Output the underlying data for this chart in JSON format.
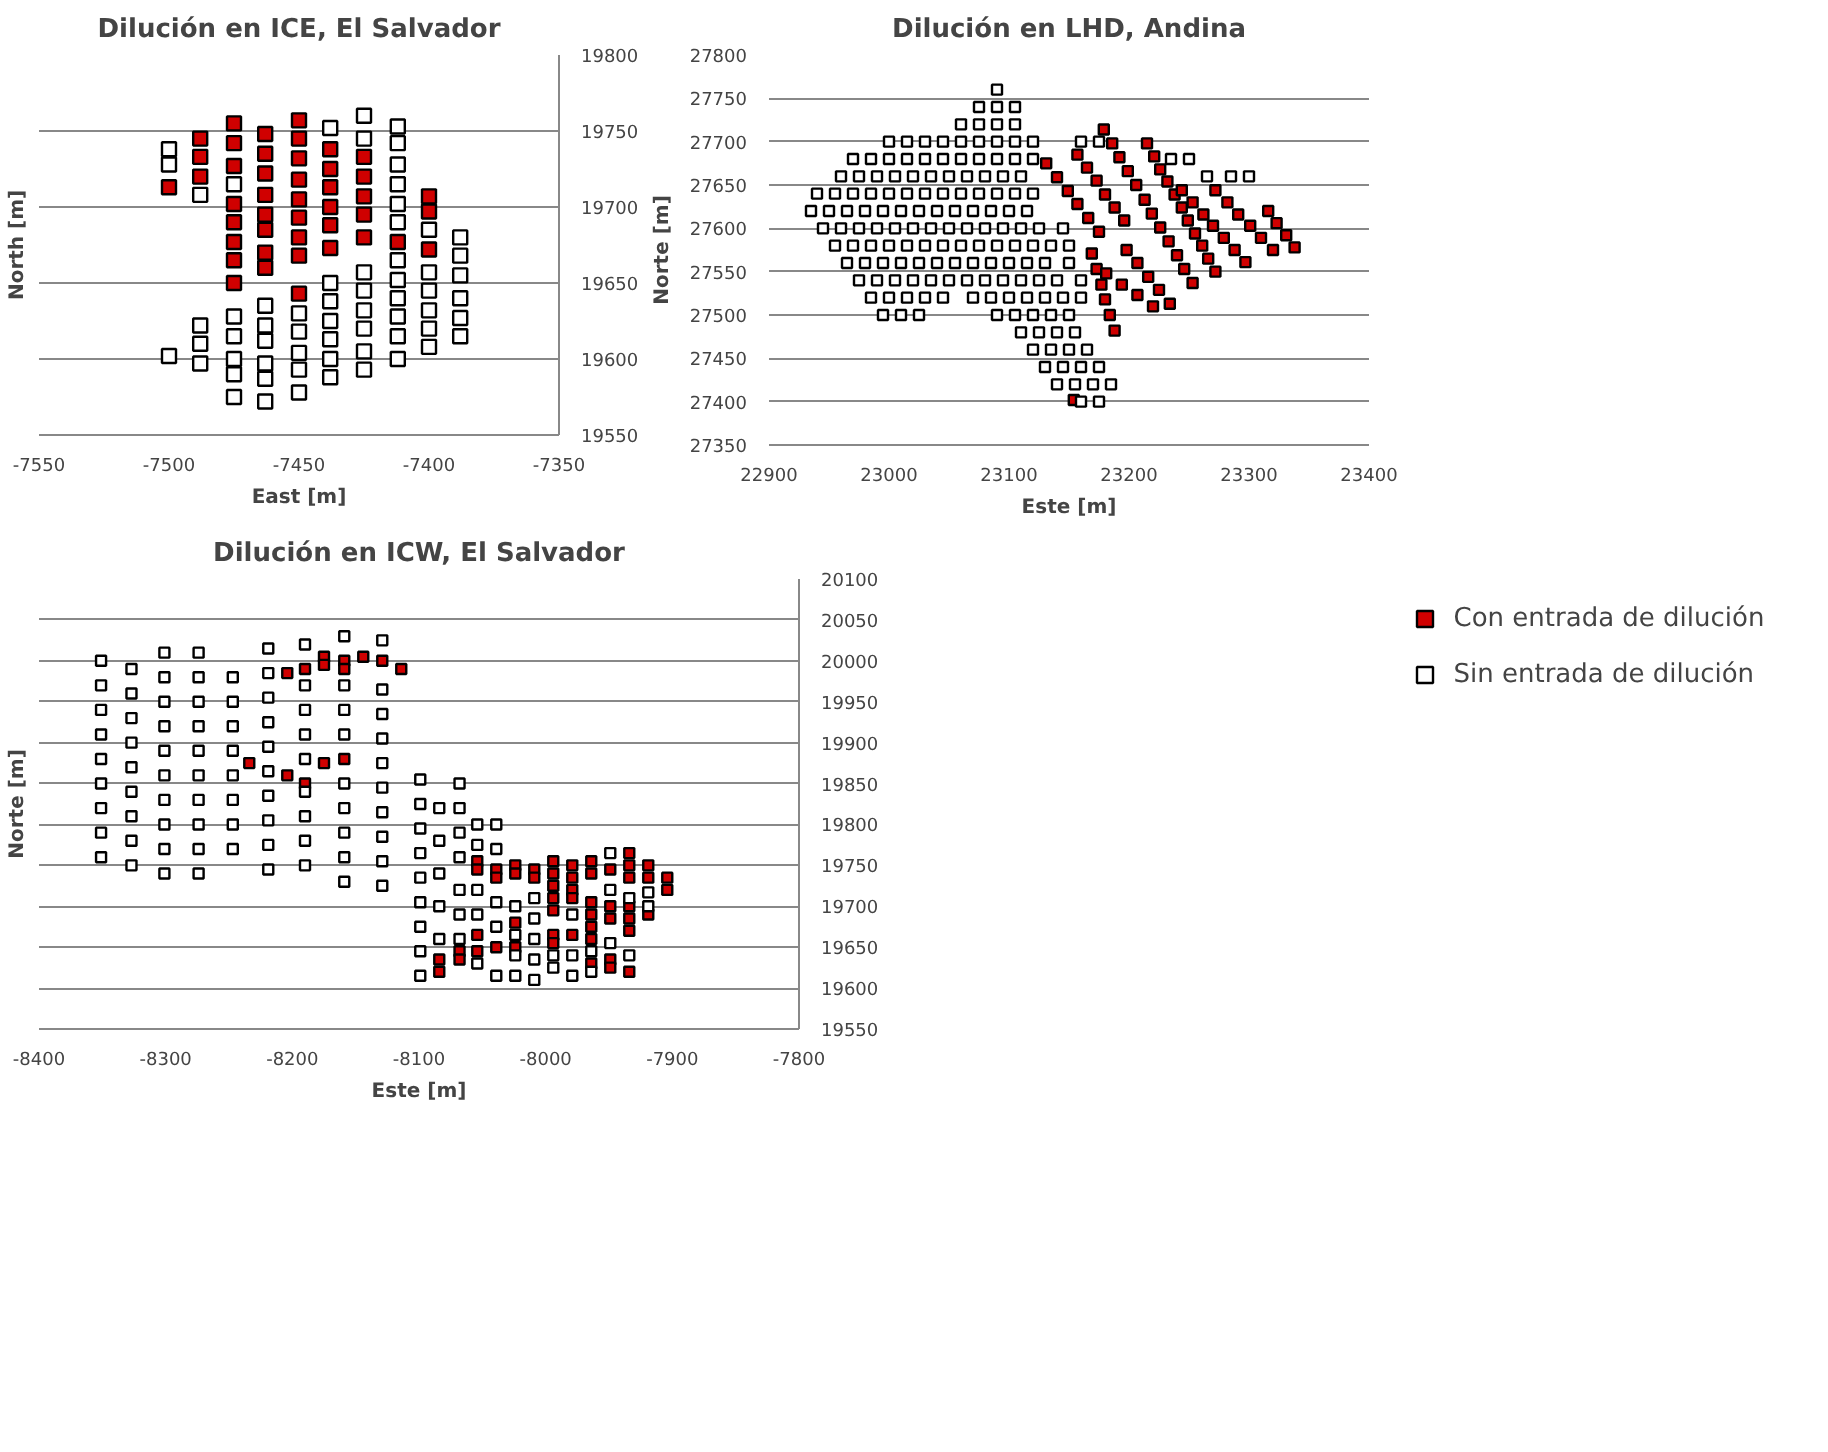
{
  "chart_data": [
    {
      "type": "scatter",
      "title": "Dilución en ICE, El Salvador",
      "xlabel": "East [m]",
      "ylabel": "North [m]",
      "xlim": [
        -7550,
        -7350
      ],
      "xticks": [
        -7550,
        -7500,
        -7450,
        -7400,
        -7350
      ],
      "y2lim": [
        19550,
        19800
      ],
      "y2ticks": [
        19550,
        19600,
        19650,
        19700,
        19750,
        19800
      ],
      "grid": "y",
      "marker": "square",
      "series": [
        {
          "color": "#d00000",
          "axis": "y2",
          "x": [
            -7500,
            -7488,
            -7488,
            -7488,
            -7475,
            -7475,
            -7475,
            -7475,
            -7475,
            -7475,
            -7475,
            -7475,
            -7463,
            -7463,
            -7463,
            -7463,
            -7463,
            -7463,
            -7463,
            -7463,
            -7450,
            -7450,
            -7450,
            -7450,
            -7450,
            -7450,
            -7450,
            -7450,
            -7450,
            -7438,
            -7438,
            -7438,
            -7438,
            -7438,
            -7438,
            -7425,
            -7425,
            -7425,
            -7425,
            -7425,
            -7412,
            -7400,
            -7400,
            -7400
          ],
          "values": [
            19713,
            19745,
            19733,
            19720,
            19755,
            19742,
            19727,
            19702,
            19690,
            19677,
            19665,
            19650,
            19748,
            19735,
            19722,
            19708,
            19695,
            19685,
            19670,
            19660,
            19757,
            19745,
            19732,
            19718,
            19705,
            19693,
            19680,
            19668,
            19643,
            19738,
            19725,
            19713,
            19700,
            19688,
            19673,
            19733,
            19720,
            19707,
            19695,
            19680,
            19677,
            19707,
            19697,
            19672
          ]
        },
        {
          "color": "#ffffff",
          "axis": "y2",
          "x": [
            -7500,
            -7500,
            -7500,
            -7488,
            -7488,
            -7488,
            -7488,
            -7475,
            -7475,
            -7475,
            -7475,
            -7475,
            -7475,
            -7463,
            -7463,
            -7463,
            -7463,
            -7463,
            -7463,
            -7450,
            -7450,
            -7450,
            -7450,
            -7450,
            -7438,
            -7438,
            -7438,
            -7438,
            -7438,
            -7438,
            -7438,
            -7425,
            -7425,
            -7425,
            -7425,
            -7425,
            -7425,
            -7425,
            -7425,
            -7412,
            -7412,
            -7412,
            -7412,
            -7412,
            -7412,
            -7412,
            -7412,
            -7412,
            -7412,
            -7412,
            -7412,
            -7400,
            -7400,
            -7400,
            -7400,
            -7400,
            -7400,
            -7388,
            -7388,
            -7388,
            -7388,
            -7388,
            -7388
          ],
          "values": [
            19738,
            19728,
            19602,
            19708,
            19622,
            19610,
            19597,
            19715,
            19628,
            19615,
            19600,
            19590,
            19575,
            19635,
            19622,
            19612,
            19597,
            19587,
            19572,
            19630,
            19618,
            19604,
            19593,
            19578,
            19752,
            19650,
            19638,
            19625,
            19613,
            19600,
            19588,
            19760,
            19745,
            19657,
            19645,
            19632,
            19620,
            19605,
            19593,
            19753,
            19742,
            19728,
            19715,
            19702,
            19690,
            19665,
            19652,
            19640,
            19628,
            19615,
            19600,
            19685,
            19657,
            19645,
            19632,
            19620,
            19608,
            19680,
            19668,
            19655,
            19640,
            19627,
            19615
          ]
        }
      ]
    },
    {
      "type": "scatter",
      "title": "Dilución en LHD, Andina",
      "xlabel": "Este [m]",
      "ylabel": "Norte [m]",
      "xlim": [
        22900,
        23400
      ],
      "xticks": [
        22900,
        23000,
        23100,
        23200,
        23300,
        23400
      ],
      "ylim": [
        27350,
        27800
      ],
      "yticks": [
        27350,
        27400,
        27450,
        27500,
        27550,
        27600,
        27650,
        27700,
        27750,
        27800
      ],
      "grid": "y",
      "marker": "square",
      "series": [
        {
          "color": "#d00000",
          "x": [
            23131,
            23140,
            23149,
            23157,
            23166,
            23175,
            23157,
            23165,
            23173,
            23180,
            23188,
            23196,
            23179,
            23186,
            23192,
            23199,
            23206,
            23213,
            23219,
            23226,
            23233,
            23240,
            23246,
            23253,
            23215,
            23221,
            23226,
            23232,
            23238,
            23244,
            23249,
            23255,
            23261,
            23266,
            23272,
            23244,
            23253,
            23262,
            23270,
            23279,
            23288,
            23297,
            23272,
            23282,
            23291,
            23301,
            23310,
            23320,
            23316,
            23323,
            23331,
            23338,
            23169,
            23173,
            23177,
            23180,
            23184,
            23188,
            23181,
            23194,
            23207,
            23220,
            23198,
            23207,
            23216,
            23225,
            23234,
            23154
          ],
          "values": [
            27675,
            27659,
            27643,
            27628,
            27612,
            27596,
            27685,
            27670,
            27655,
            27639,
            27624,
            27609,
            27714,
            27698,
            27682,
            27666,
            27650,
            27633,
            27617,
            27601,
            27585,
            27569,
            27553,
            27537,
            27698,
            27683,
            27668,
            27654,
            27639,
            27624,
            27609,
            27594,
            27580,
            27565,
            27550,
            27644,
            27630,
            27616,
            27603,
            27589,
            27575,
            27561,
            27644,
            27630,
            27616,
            27603,
            27589,
            27575,
            27620,
            27606,
            27592,
            27578,
            27571,
            27553,
            27535,
            27518,
            27500,
            27482,
            27548,
            27535,
            27523,
            27510,
            27575,
            27560,
            27544,
            27529,
            27513,
            27402
          ]
        },
        {
          "color": "#ffffff",
          "x": [
            23090,
            23075,
            23090,
            23105,
            23060,
            23075,
            23090,
            23105,
            23000,
            23015,
            23030,
            23045,
            23060,
            23075,
            23090,
            23105,
            23120,
            23160,
            23175,
            22970,
            22985,
            23000,
            23015,
            23030,
            23045,
            23060,
            23075,
            23090,
            23105,
            23120,
            23235,
            23250,
            22960,
            22975,
            22990,
            23005,
            23020,
            23035,
            23050,
            23065,
            23080,
            23095,
            23110,
            23265,
            23285,
            23300,
            22940,
            22955,
            22970,
            22985,
            23000,
            23015,
            23030,
            23045,
            23060,
            23075,
            23090,
            23105,
            23120,
            22935,
            22950,
            22965,
            22980,
            22995,
            23010,
            23025,
            23040,
            23055,
            23070,
            23085,
            23100,
            23115,
            22945,
            22960,
            22975,
            22990,
            23005,
            23020,
            23035,
            23050,
            23065,
            23080,
            23095,
            23110,
            23125,
            23145,
            22955,
            22970,
            22985,
            23000,
            23015,
            23030,
            23045,
            23060,
            23075,
            23090,
            23105,
            23120,
            23135,
            23150,
            22965,
            22980,
            22995,
            23010,
            23025,
            23040,
            23055,
            23070,
            23085,
            23100,
            23115,
            23130,
            23150,
            22975,
            22990,
            23005,
            23020,
            23035,
            23050,
            23065,
            23080,
            23095,
            23110,
            23125,
            23140,
            23160,
            22985,
            23000,
            23015,
            23030,
            23045,
            23070,
            23085,
            23100,
            23115,
            23130,
            23145,
            23160,
            22995,
            23010,
            23025,
            23090,
            23105,
            23120,
            23135,
            23150,
            23110,
            23125,
            23140,
            23155,
            23120,
            23135,
            23150,
            23165,
            23130,
            23145,
            23160,
            23175,
            23140,
            23155,
            23170,
            23185,
            23160,
            23175
          ],
          "values": [
            27760,
            27740,
            27740,
            27740,
            27720,
            27720,
            27720,
            27720,
            27700,
            27700,
            27700,
            27700,
            27700,
            27700,
            27700,
            27700,
            27700,
            27700,
            27700,
            27680,
            27680,
            27680,
            27680,
            27680,
            27680,
            27680,
            27680,
            27680,
            27680,
            27680,
            27680,
            27680,
            27660,
            27660,
            27660,
            27660,
            27660,
            27660,
            27660,
            27660,
            27660,
            27660,
            27660,
            27660,
            27660,
            27660,
            27640,
            27640,
            27640,
            27640,
            27640,
            27640,
            27640,
            27640,
            27640,
            27640,
            27640,
            27640,
            27640,
            27620,
            27620,
            27620,
            27620,
            27620,
            27620,
            27620,
            27620,
            27620,
            27620,
            27620,
            27620,
            27620,
            27600,
            27600,
            27600,
            27600,
            27600,
            27600,
            27600,
            27600,
            27600,
            27600,
            27600,
            27600,
            27600,
            27600,
            27580,
            27580,
            27580,
            27580,
            27580,
            27580,
            27580,
            27580,
            27580,
            27580,
            27580,
            27580,
            27580,
            27580,
            27560,
            27560,
            27560,
            27560,
            27560,
            27560,
            27560,
            27560,
            27560,
            27560,
            27560,
            27560,
            27560,
            27540,
            27540,
            27540,
            27540,
            27540,
            27540,
            27540,
            27540,
            27540,
            27540,
            27540,
            27540,
            27540,
            27520,
            27520,
            27520,
            27520,
            27520,
            27520,
            27520,
            27520,
            27520,
            27520,
            27520,
            27520,
            27500,
            27500,
            27500,
            27500,
            27500,
            27500,
            27500,
            27500,
            27480,
            27480,
            27480,
            27480,
            27460,
            27460,
            27460,
            27460,
            27440,
            27440,
            27440,
            27440,
            27420,
            27420,
            27420,
            27420,
            27400,
            27400
          ]
        }
      ]
    },
    {
      "type": "scatter",
      "title": "Dilución en ICW, El Salvador",
      "xlabel": "Este [m]",
      "ylabel": "Norte [m]",
      "xlim": [
        -8400,
        -7800
      ],
      "xticks": [
        -8400,
        -8300,
        -8200,
        -8100,
        -8000,
        -7900,
        -7800
      ],
      "y2lim": [
        19550,
        20100
      ],
      "y2ticks": [
        19550,
        19600,
        19650,
        19700,
        19750,
        19800,
        19850,
        19900,
        19950,
        20000,
        20050,
        20100
      ],
      "grid": "y",
      "marker": "square",
      "legend": "right",
      "series": [
        {
          "name": "Con entrada de dilución",
          "color": "#d00000",
          "axis": "y2",
          "x": [
            -8234,
            -8204,
            -8204,
            -8190,
            -8190,
            -8175,
            -8175,
            -8175,
            -8159,
            -8159,
            -8159,
            -8144,
            -8129,
            -8114,
            -8084,
            -8084,
            -8068,
            -8068,
            -8054,
            -8054,
            -8054,
            -8054,
            -8039,
            -8039,
            -8039,
            -8024,
            -8024,
            -8024,
            -8024,
            -8009,
            -8009,
            -7994,
            -7994,
            -7994,
            -7994,
            -7994,
            -7994,
            -7994,
            -7979,
            -7979,
            -7979,
            -7979,
            -7979,
            -7964,
            -7964,
            -7964,
            -7964,
            -7964,
            -7964,
            -7964,
            -7949,
            -7949,
            -7949,
            -7949,
            -7949,
            -7934,
            -7934,
            -7934,
            -7934,
            -7934,
            -7934,
            -7934,
            -7919,
            -7919,
            -7919,
            -7904,
            -7904
          ],
          "values": [
            19875,
            19985,
            19860,
            19990,
            19850,
            20005,
            19995,
            19875,
            20000,
            19990,
            19880,
            20005,
            20000,
            19990,
            19635,
            19620,
            19645,
            19635,
            19755,
            19745,
            19665,
            19645,
            19745,
            19735,
            19650,
            19750,
            19740,
            19680,
            19650,
            19745,
            19735,
            19755,
            19740,
            19725,
            19710,
            19695,
            19665,
            19655,
            19750,
            19735,
            19720,
            19710,
            19665,
            19755,
            19740,
            19705,
            19690,
            19675,
            19660,
            19630,
            19745,
            19700,
            19685,
            19635,
            19625,
            19765,
            19750,
            19735,
            19700,
            19685,
            19670,
            19620,
            19750,
            19735,
            19690,
            19735,
            19720
          ]
        },
        {
          "name": "Sin entrada de dilución",
          "color": "#ffffff",
          "axis": "y2",
          "x": [
            -8351,
            -8351,
            -8351,
            -8351,
            -8351,
            -8351,
            -8351,
            -8351,
            -8351,
            -8327,
            -8327,
            -8327,
            -8327,
            -8327,
            -8327,
            -8327,
            -8327,
            -8327,
            -8301,
            -8301,
            -8301,
            -8301,
            -8301,
            -8301,
            -8301,
            -8301,
            -8301,
            -8301,
            -8274,
            -8274,
            -8274,
            -8274,
            -8274,
            -8274,
            -8274,
            -8274,
            -8274,
            -8274,
            -8247,
            -8247,
            -8247,
            -8247,
            -8247,
            -8247,
            -8247,
            -8247,
            -8219,
            -8219,
            -8219,
            -8219,
            -8219,
            -8219,
            -8219,
            -8219,
            -8219,
            -8219,
            -8190,
            -8190,
            -8190,
            -8190,
            -8190,
            -8190,
            -8190,
            -8190,
            -8190,
            -8159,
            -8159,
            -8159,
            -8159,
            -8159,
            -8159,
            -8159,
            -8159,
            -8159,
            -8129,
            -8129,
            -8129,
            -8129,
            -8129,
            -8129,
            -8129,
            -8129,
            -8129,
            -8129,
            -8099,
            -8099,
            -8099,
            -8099,
            -8099,
            -8099,
            -8099,
            -8099,
            -8099,
            -8084,
            -8084,
            -8084,
            -8084,
            -8084,
            -8068,
            -8068,
            -8068,
            -8068,
            -8068,
            -8068,
            -8068,
            -8054,
            -8054,
            -8054,
            -8054,
            -8054,
            -8039,
            -8039,
            -8039,
            -8039,
            -8039,
            -8024,
            -8024,
            -8024,
            -8024,
            -8009,
            -8009,
            -8009,
            -8009,
            -8009,
            -7994,
            -7994,
            -7979,
            -7979,
            -7979,
            -7964,
            -7964,
            -7949,
            -7949,
            -7949,
            -7934,
            -7934,
            -7919,
            -7919
          ],
          "values": [
            19760,
            19790,
            19820,
            19850,
            19880,
            19910,
            19940,
            19970,
            20000,
            19750,
            19780,
            19810,
            19840,
            19870,
            19900,
            19930,
            19960,
            19990,
            19740,
            19770,
            19800,
            19830,
            19860,
            19890,
            19920,
            19950,
            19980,
            20010,
            19740,
            19770,
            19800,
            19830,
            19860,
            19890,
            19920,
            19950,
            19980,
            20010,
            19770,
            19800,
            19830,
            19860,
            19890,
            19920,
            19950,
            19980,
            19745,
            19775,
            19805,
            19835,
            19865,
            19895,
            19925,
            19955,
            19985,
            20015,
            19750,
            19780,
            19810,
            19840,
            19880,
            19910,
            19940,
            19970,
            20020,
            19730,
            19760,
            19790,
            19820,
            19850,
            19910,
            19940,
            19970,
            20030,
            19725,
            19755,
            19785,
            19815,
            19845,
            19875,
            19905,
            19935,
            19965,
            20025,
            19615,
            19645,
            19675,
            19705,
            19735,
            19765,
            19795,
            19825,
            19855,
            19660,
            19700,
            19740,
            19780,
            19820,
            19660,
            19690,
            19720,
            19760,
            19790,
            19820,
            19850,
            19630,
            19690,
            19720,
            19775,
            19800,
            19615,
            19675,
            19705,
            19770,
            19800,
            19615,
            19640,
            19665,
            19700,
            19610,
            19635,
            19660,
            19685,
            19710,
            19625,
            19640,
            19615,
            19640,
            19690,
            19620,
            19645,
            19655,
            19720,
            19765,
            19640,
            19710,
            19700,
            19717
          ]
        }
      ]
    }
  ]
}
